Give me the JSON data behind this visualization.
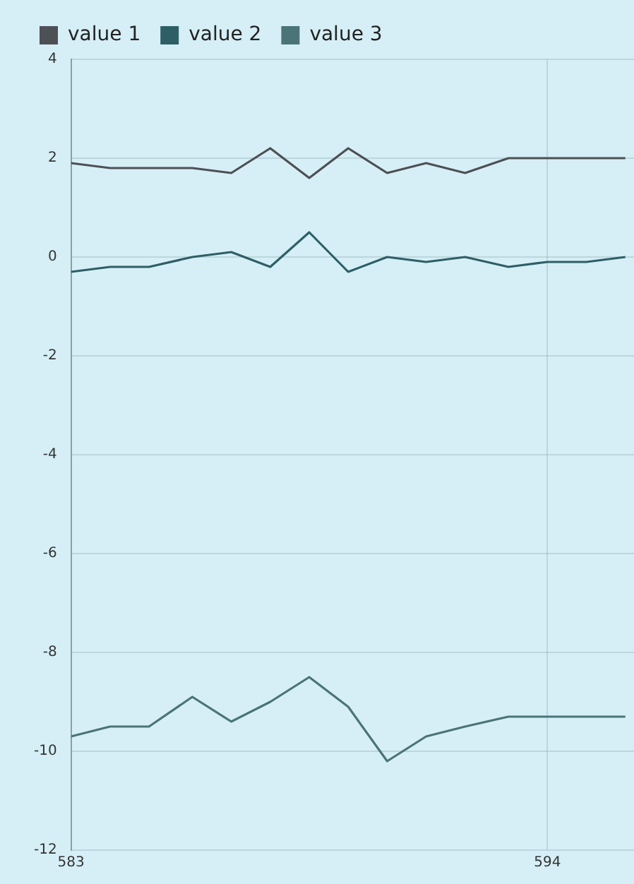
{
  "chart_data": {
    "type": "line",
    "x": [
      583,
      583.9,
      584.8,
      585.8,
      586.7,
      587.6,
      588.5,
      589.4,
      590.3,
      591.2,
      592.1,
      593.1,
      594.0,
      594.9,
      595.8
    ],
    "series": [
      {
        "name": "value 1",
        "color": "#4d5055",
        "values": [
          1.9,
          1.8,
          1.8,
          1.8,
          1.7,
          2.2,
          1.6,
          2.2,
          1.7,
          1.9,
          1.7,
          2.0,
          2.0,
          2.0,
          2.0
        ]
      },
      {
        "name": "value 2",
        "color": "#2f5f66",
        "values": [
          -0.3,
          -0.2,
          -0.2,
          0,
          0.1,
          -0.2,
          0.5,
          -0.3,
          0,
          -0.1,
          0,
          -0.2,
          -0.1,
          -0.1,
          0
        ]
      },
      {
        "name": "value 3",
        "color": "#4a7478",
        "values": [
          -9.7,
          -9.5,
          -9.5,
          -8.9,
          -9.4,
          -9.0,
          -8.5,
          -9.1,
          -10.2,
          -9.7,
          -9.5,
          -9.3,
          -9.3,
          -9.3,
          -9.3
        ]
      }
    ],
    "xlim": [
      583,
      596
    ],
    "xticks": [
      583,
      594
    ],
    "ylim": [
      -12,
      4
    ],
    "yticks": [
      -12,
      -10,
      -8,
      -6,
      -4,
      -2,
      0,
      2,
      4
    ],
    "grid": true,
    "legend": "top left",
    "marker": "none",
    "line_style": "solid"
  }
}
